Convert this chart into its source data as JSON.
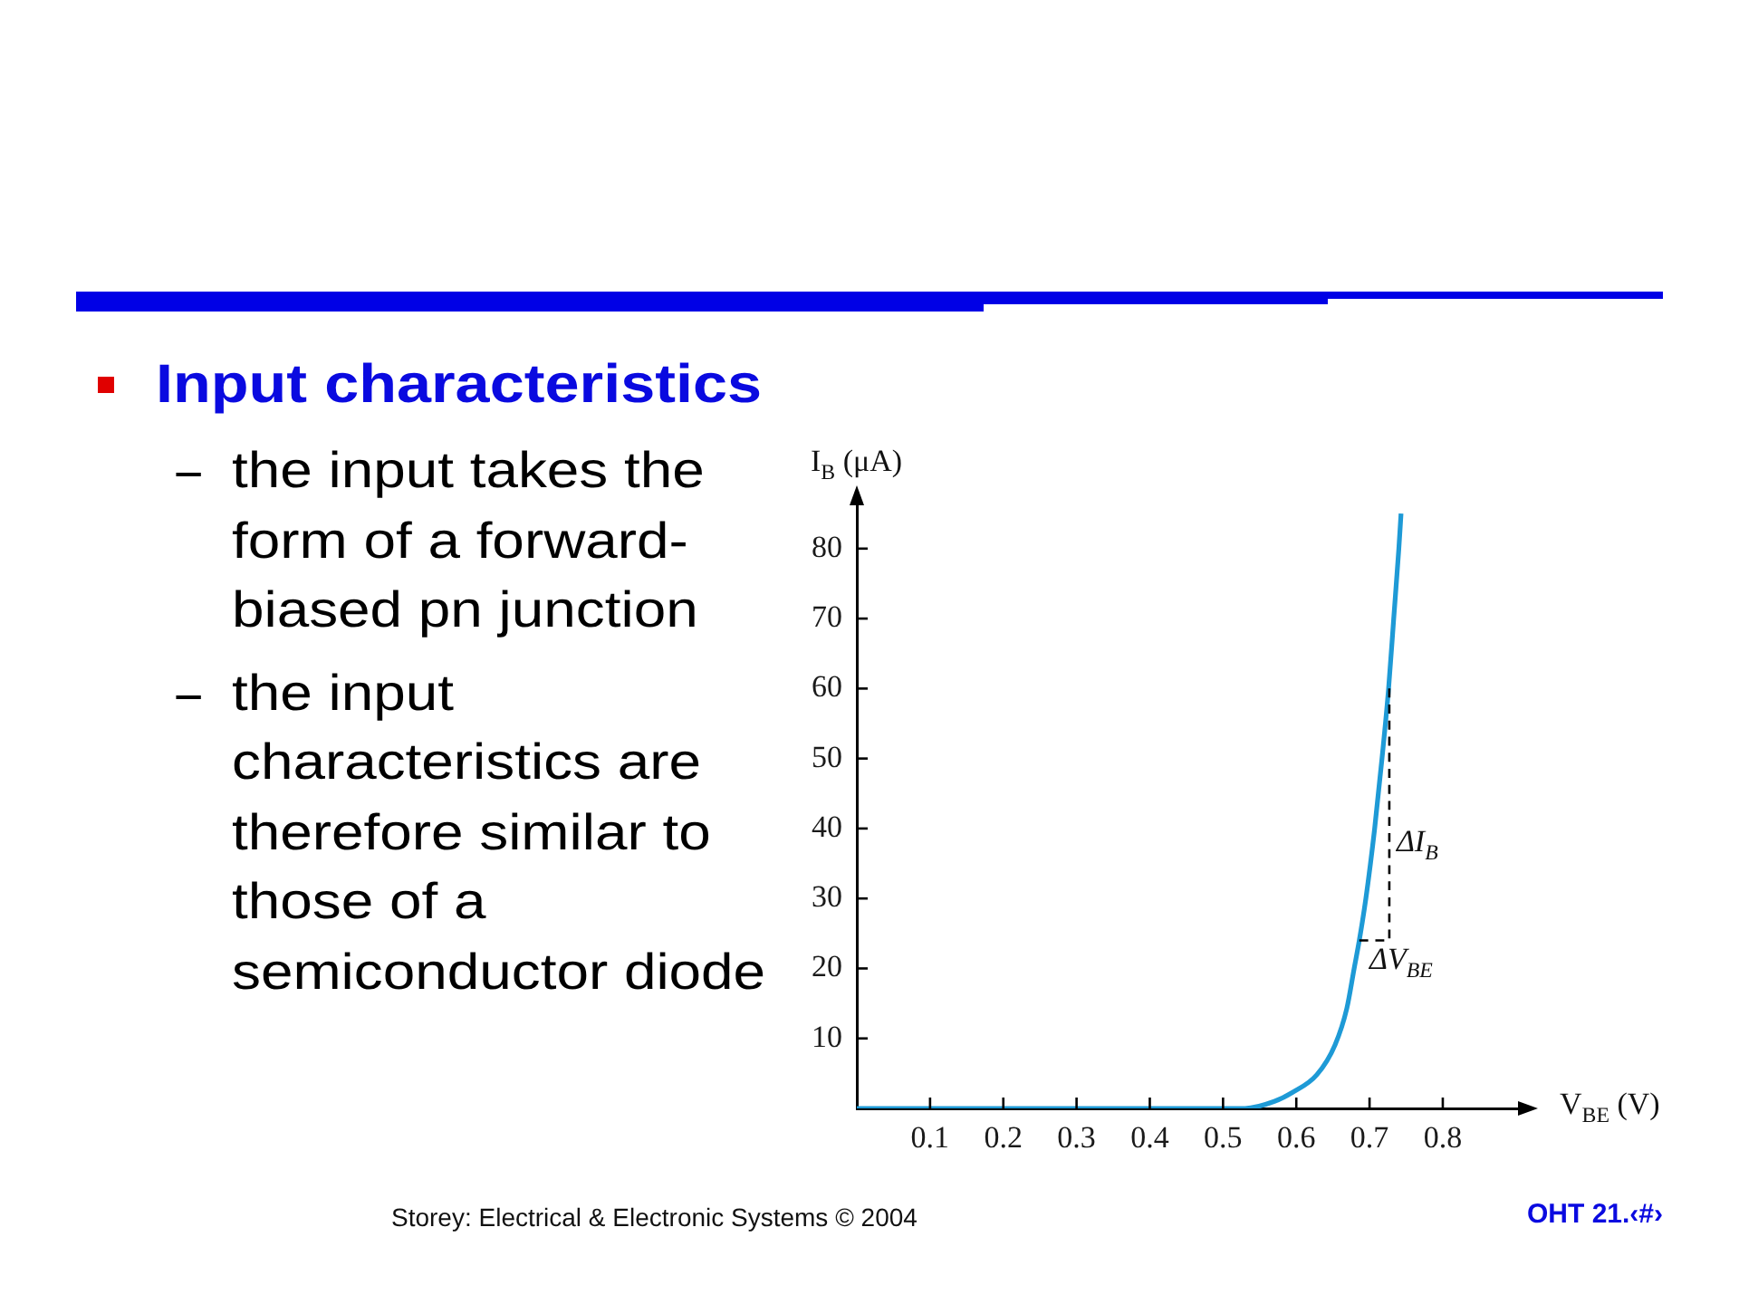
{
  "chart_data": {
    "type": "line",
    "title": "Input characteristics",
    "xlabel": "V$_{BE}$ (V)",
    "ylabel": "I$_{B}$ (μA)",
    "xlim": [
      0,
      0.92
    ],
    "ylim": [
      0,
      88
    ],
    "xticks": [
      0.1,
      0.2,
      0.3,
      0.4,
      0.5,
      0.6,
      0.7,
      0.8
    ],
    "yticks": [
      10,
      20,
      30,
      40,
      50,
      60,
      70,
      80
    ],
    "marker": "none",
    "series": [
      {
        "color": "#1e9ad6",
        "x": [
          0,
          0.53,
          0.57,
          0.595,
          0.628,
          0.653,
          0.669,
          0.679,
          0.686,
          0.695,
          0.707,
          0.717,
          0.726,
          0.733,
          0.74,
          0.743
        ],
        "values": [
          0,
          0,
          1,
          2.3,
          4.8,
          9.1,
          14.3,
          20,
          24,
          30,
          40,
          50,
          60,
          70,
          80,
          85
        ]
      },
      {
        "color": "#000000",
        "line_style": "dashed",
        "x": [
          0.686,
          0.727,
          0.727
        ],
        "values": [
          24,
          24,
          60
        ]
      }
    ],
    "annotations": [
      {
        "text": "ΔI$_{B}$",
        "x": 0.727,
        "y": 41
      },
      {
        "text": "ΔV$_{BE}$",
        "x": 0.69,
        "y": 24
      },
      "the input takes the form of a forward-biased pn junction",
      "the input characteristics are therefore similar to those of a semiconductor diode",
      "Storey: Electrical & Electronic Systems © 2004",
      "OHT 21.‹#›"
    ]
  }
}
